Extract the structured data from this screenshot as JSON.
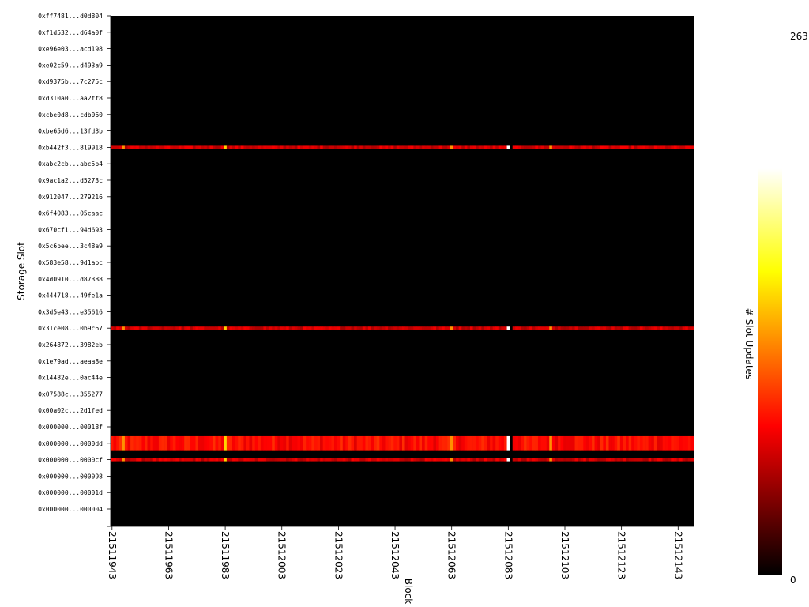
{
  "chart_data": {
    "type": "heatmap",
    "title": "",
    "xlabel": "Block",
    "ylabel": "Storage Slot",
    "colorbar": {
      "label": "# Slot Updates",
      "min": 0,
      "max": 263,
      "min_label": "0",
      "max_label": "263",
      "colormap": "hot"
    },
    "x_range": [
      21511943,
      21512148
    ],
    "x_ticks": [
      "21511943",
      "21511963",
      "21511983",
      "21512003",
      "21512023",
      "21512043",
      "21512063",
      "21512083",
      "21512103",
      "21512123",
      "21512143"
    ],
    "y_ticks": [
      "0xff7481...d0d804",
      "0xf1d532...d64a0f",
      "0xe96e03...acd198",
      "0xe02c59...d493a9",
      "0xd9375b...7c275c",
      "0xd310a0...aa2ff8",
      "0xcbe0d8...cdb060",
      "0xbe65d6...13fd3b",
      "0xb442f3...819918",
      "0xabc2cb...abc5b4",
      "0x9ac1a2...d5273c",
      "0x912047...279216",
      "0x6f4083...05caac",
      "0x670cf1...94d693",
      "0x5c6bee...3c48a9",
      "0x583e58...9d1abc",
      "0x4d0910...d87388",
      "0x444718...49fe1a",
      "0x3d5e43...e35616",
      "0x31ce08...0b9c67",
      "0x264872...3982eb",
      "0x1e79ad...aeaa8e",
      "0x14482e...0ac44e",
      "0x07588c...355277",
      "0x00a02c...2d1fed",
      "0x000000...00018f",
      "0x000000...0000dd",
      "0x000000...0000cf",
      "0x000000...000098",
      "0x000000...00001d",
      "0x000000...000004"
    ],
    "hot_rows": [
      {
        "slot": "0x000000...0000dd",
        "level": 0.38
      },
      {
        "slot": "0x000000...0000cf",
        "level": 0.3
      },
      {
        "slot": "0xb442f3...819918",
        "level": 0.3
      },
      {
        "slot": "0x31ce08...0b9c67",
        "level": 0.3
      }
    ],
    "peak_block": 21512083
  }
}
